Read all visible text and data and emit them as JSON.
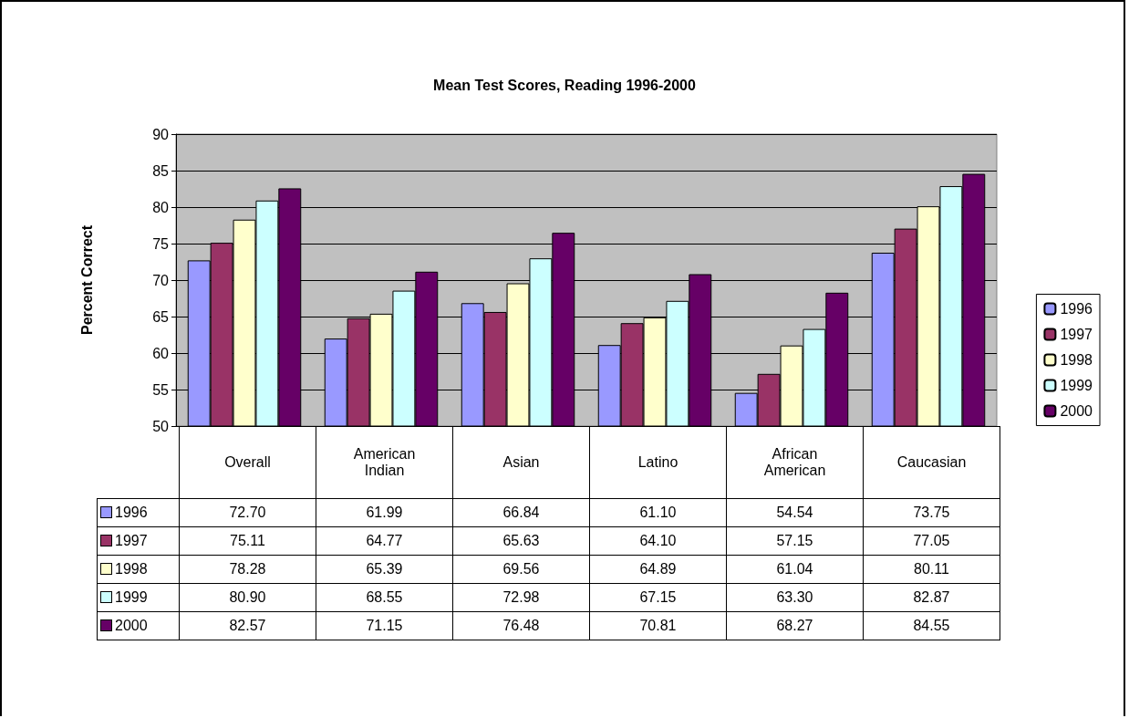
{
  "chart_data": {
    "type": "bar",
    "title": "Mean Test Scores, Reading 1996-2000",
    "ylabel": "Percent Correct",
    "categories": [
      "Overall",
      "American Indian",
      "Asian",
      "Latino",
      "African American",
      "Caucasian"
    ],
    "series": [
      {
        "name": "1996",
        "color": "#9999ff",
        "values": [
          72.7,
          61.99,
          66.84,
          61.1,
          54.54,
          73.75
        ],
        "value_labels": [
          "72.70",
          "61.99",
          "66.84",
          "61.10",
          "54.54",
          "73.75"
        ]
      },
      {
        "name": "1997",
        "color": "#993366",
        "values": [
          75.11,
          64.77,
          65.63,
          64.1,
          57.15,
          77.05
        ],
        "value_labels": [
          "75.11",
          "64.77",
          "65.63",
          "64.10",
          "57.15",
          "77.05"
        ]
      },
      {
        "name": "1998",
        "color": "#ffffcc",
        "values": [
          78.28,
          65.39,
          69.56,
          64.89,
          61.04,
          80.11
        ],
        "value_labels": [
          "78.28",
          "65.39",
          "69.56",
          "64.89",
          "61.04",
          "80.11"
        ]
      },
      {
        "name": "1999",
        "color": "#ccffff",
        "values": [
          80.9,
          68.55,
          72.98,
          67.15,
          63.3,
          82.87
        ],
        "value_labels": [
          "80.90",
          "68.55",
          "72.98",
          "67.15",
          "63.30",
          "82.87"
        ]
      },
      {
        "name": "2000",
        "color": "#660066",
        "values": [
          82.57,
          71.15,
          76.48,
          70.81,
          68.27,
          84.55
        ],
        "value_labels": [
          "82.57",
          "71.15",
          "76.48",
          "70.81",
          "68.27",
          "84.55"
        ]
      }
    ],
    "ylim": [
      50,
      90
    ],
    "yticks": [
      50,
      55,
      60,
      65,
      70,
      75,
      80,
      85,
      90
    ],
    "grid": "y",
    "legend": "right"
  }
}
